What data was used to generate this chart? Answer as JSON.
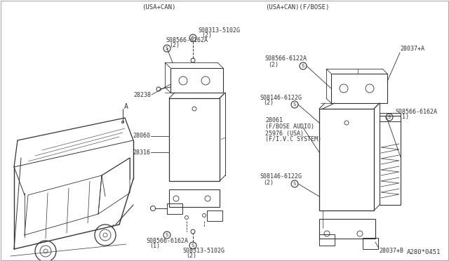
{
  "background_color": "#ffffff",
  "line_color": "#333333",
  "diagram_code": "A280*0451",
  "section_a_label": "(USA+CAN)",
  "section_b_label": "(USA+CAN)(F/BOSE)",
  "label_A": "A",
  "parts_left": {
    "screw1_label": "S08566-6162A",
    "screw1_qty": "(2)",
    "screw2_label": "S08313-5102G",
    "screw2_qty": "(2)",
    "bracket_label": "28238",
    "main_label": "28060",
    "sub_label": "28316",
    "bot_screw1_label": "S08566-6162A",
    "bot_screw1_qty": "(1)",
    "bot_screw2_label": "S08313-5102G",
    "bot_screw2_qty": "(2)"
  },
  "parts_right": {
    "top_label": "28037+A",
    "screw_top_label": "S08566-6122A",
    "screw_top_qty": "(2)",
    "screw_mid1_label": "S08146-6122G",
    "screw_mid1_qty": "(2)",
    "screw_mid2_label": "S08566-6162A",
    "screw_mid2_qty": "(1)",
    "unit_label1": "28061",
    "unit_label2": "(F/BOSE AUDIO)",
    "unit_label3": "25976 (USA)",
    "unit_label4": "(F/I.V.C SYSTEM)",
    "screw_bot_label": "S08146-6122G",
    "screw_bot_qty": "(2)",
    "bot_label": "28037+B"
  }
}
